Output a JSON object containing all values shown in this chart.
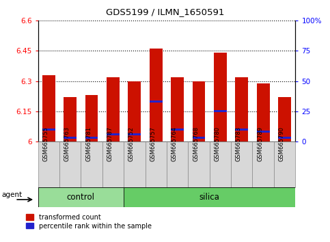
{
  "title": "GDS5199 / ILMN_1650591",
  "samples": [
    "GSM665755",
    "GSM665763",
    "GSM665781",
    "GSM665787",
    "GSM665752",
    "GSM665757",
    "GSM665764",
    "GSM665768",
    "GSM665780",
    "GSM665783",
    "GSM665789",
    "GSM665790"
  ],
  "groups": [
    "control",
    "control",
    "control",
    "control",
    "silica",
    "silica",
    "silica",
    "silica",
    "silica",
    "silica",
    "silica",
    "silica"
  ],
  "red_values": [
    6.33,
    6.22,
    6.23,
    6.32,
    6.3,
    6.46,
    6.32,
    6.3,
    6.44,
    6.32,
    6.29,
    6.22
  ],
  "blue_pct": [
    10,
    3,
    3,
    6,
    6,
    33,
    10,
    3,
    25,
    10,
    8,
    3
  ],
  "y_min": 6.0,
  "y_max": 6.6,
  "y_ticks": [
    6.0,
    6.15,
    6.3,
    6.45,
    6.6
  ],
  "y_tick_labels": [
    "6",
    "6.15",
    "6.3",
    "6.45",
    "6.6"
  ],
  "right_y_ticks": [
    0,
    25,
    50,
    75,
    100
  ],
  "right_y_tick_labels": [
    "0",
    "25",
    "50",
    "75",
    "100%"
  ],
  "bar_width": 0.6,
  "red_color": "#cc1100",
  "blue_color": "#2222cc",
  "control_color": "#99dd99",
  "silica_color": "#66cc66",
  "agent_label": "agent",
  "group_labels": [
    "control",
    "silica"
  ],
  "legend_labels": [
    "transformed count",
    "percentile rank within the sample"
  ],
  "bg_color": "#d8d8d8"
}
